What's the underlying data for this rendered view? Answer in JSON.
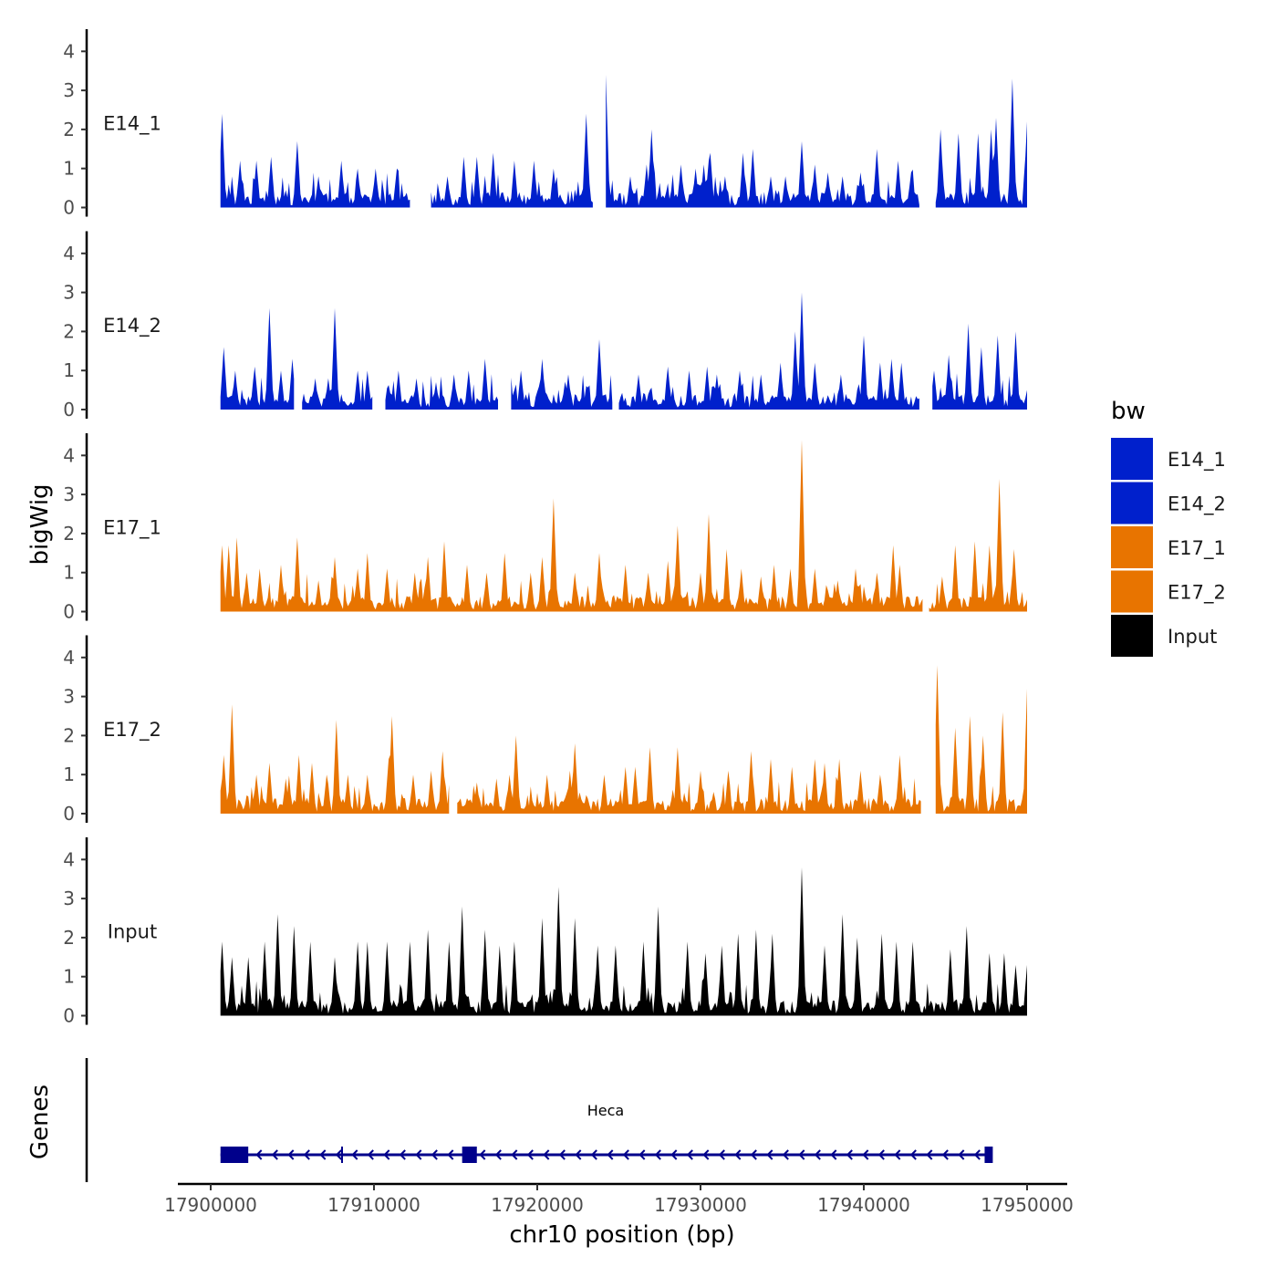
{
  "chart_data": {
    "type": "area",
    "xlabel": "chr10 position (bp)",
    "ylabel": "bigWig",
    "genes_label": "Genes",
    "xlim": [
      17896000,
      17951000
    ],
    "ylim": [
      0,
      4.6
    ],
    "x_ticks": [
      17900000,
      17910000,
      17920000,
      17930000,
      17940000,
      17950000
    ],
    "x_tick_labels": [
      "17900000",
      "17910000",
      "17920000",
      "17930000",
      "17940000",
      "17950000"
    ],
    "y_ticks": [
      0,
      1,
      2,
      3,
      4
    ],
    "y_tick_labels": [
      "0",
      "1",
      "2",
      "3",
      "4"
    ],
    "region": [
      17900600,
      17950000
    ],
    "legend": {
      "title": "bw",
      "position": "right",
      "entries": [
        {
          "name": "E14_1",
          "color": "#0020CC"
        },
        {
          "name": "E14_2",
          "color": "#0020CC"
        },
        {
          "name": "E17_1",
          "color": "#E87400"
        },
        {
          "name": "E17_2",
          "color": "#E87400"
        },
        {
          "name": "Input",
          "color": "#000000"
        }
      ]
    },
    "series": [
      {
        "name": "E14_1",
        "label": "E14_1",
        "color": "#0020CC",
        "gaps": [
          [
            17912200,
            17913500
          ],
          [
            17923400,
            17924200
          ],
          [
            17943400,
            17944400
          ]
        ],
        "peaks": [
          [
            17900700,
            2.4
          ],
          [
            17901800,
            1.2
          ],
          [
            17902800,
            1.2
          ],
          [
            17903700,
            1.3
          ],
          [
            17905300,
            1.7
          ],
          [
            17906600,
            0.8
          ],
          [
            17908000,
            1.2
          ],
          [
            17909000,
            1.0
          ],
          [
            17910100,
            1.0
          ],
          [
            17911400,
            1.0
          ],
          [
            17914500,
            0.8
          ],
          [
            17915500,
            1.3
          ],
          [
            17916300,
            1.3
          ],
          [
            17917300,
            1.4
          ],
          [
            17918600,
            1.2
          ],
          [
            17919800,
            1.2
          ],
          [
            17921000,
            1.0
          ],
          [
            17923000,
            2.4
          ],
          [
            17923800,
            2.4
          ],
          [
            17924200,
            3.4
          ],
          [
            17925700,
            0.8
          ],
          [
            17926700,
            1.1
          ],
          [
            17927000,
            2.0
          ],
          [
            17928800,
            1.1
          ],
          [
            17929700,
            1.0
          ],
          [
            17930200,
            1.1
          ],
          [
            17930500,
            1.2
          ],
          [
            17930600,
            1.4
          ],
          [
            17931500,
            0.8
          ],
          [
            17932600,
            1.4
          ],
          [
            17933200,
            1.5
          ],
          [
            17934300,
            0.8
          ],
          [
            17935200,
            0.8
          ],
          [
            17936200,
            1.7
          ],
          [
            17937000,
            1.1
          ],
          [
            17937800,
            0.9
          ],
          [
            17938700,
            0.8
          ],
          [
            17939800,
            0.9
          ],
          [
            17940800,
            1.5
          ],
          [
            17942100,
            1.2
          ],
          [
            17942900,
            0.9
          ],
          [
            17944700,
            2.0
          ],
          [
            17945800,
            1.9
          ],
          [
            17947000,
            1.9
          ],
          [
            17947800,
            2.0
          ],
          [
            17948100,
            2.3
          ],
          [
            17949100,
            3.3
          ],
          [
            17950000,
            2.2
          ]
        ]
      },
      {
        "name": "E14_2",
        "label": "E14_2",
        "color": "#0020CC",
        "gaps": [
          [
            17905100,
            17905600
          ],
          [
            17909900,
            17910700
          ],
          [
            17917600,
            17918400
          ],
          [
            17924600,
            17925000
          ],
          [
            17943400,
            17944200
          ]
        ],
        "peaks": [
          [
            17900800,
            1.6
          ],
          [
            17901500,
            1.0
          ],
          [
            17902700,
            1.1
          ],
          [
            17903600,
            2.6
          ],
          [
            17904300,
            1.0
          ],
          [
            17905000,
            1.3
          ],
          [
            17906400,
            0.8
          ],
          [
            17907200,
            0.8
          ],
          [
            17907600,
            2.6
          ],
          [
            17909000,
            1.0
          ],
          [
            17909600,
            1.0
          ],
          [
            17911500,
            1.0
          ],
          [
            17912600,
            0.8
          ],
          [
            17913800,
            0.7
          ],
          [
            17914900,
            0.9
          ],
          [
            17915800,
            1.0
          ],
          [
            17916800,
            1.3
          ],
          [
            17919000,
            1.0
          ],
          [
            17920300,
            1.3
          ],
          [
            17921900,
            0.9
          ],
          [
            17922800,
            0.5
          ],
          [
            17923800,
            1.8
          ],
          [
            17926200,
            0.9
          ],
          [
            17928000,
            1.1
          ],
          [
            17929300,
            1.0
          ],
          [
            17930400,
            1.1
          ],
          [
            17931000,
            0.9
          ],
          [
            17932400,
            1.0
          ],
          [
            17933700,
            0.9
          ],
          [
            17934900,
            1.2
          ],
          [
            17935800,
            2.0
          ],
          [
            17936200,
            3.0
          ],
          [
            17937000,
            1.2
          ],
          [
            17938600,
            0.9
          ],
          [
            17940000,
            1.9
          ],
          [
            17941000,
            1.2
          ],
          [
            17941700,
            1.3
          ],
          [
            17942300,
            1.2
          ],
          [
            17944300,
            1.0
          ],
          [
            17945200,
            1.4
          ],
          [
            17946400,
            2.2
          ],
          [
            17947200,
            1.6
          ],
          [
            17948200,
            1.9
          ],
          [
            17949300,
            2.0
          ],
          [
            17950000,
            0.5
          ]
        ]
      },
      {
        "name": "E17_1",
        "label": "E17_1",
        "color": "#E87400",
        "gaps": [
          [
            17943600,
            17944000
          ]
        ],
        "peaks": [
          [
            17900700,
            1.7
          ],
          [
            17901100,
            1.7
          ],
          [
            17901600,
            1.9
          ],
          [
            17902200,
            1.0
          ],
          [
            17903000,
            1.1
          ],
          [
            17904300,
            1.2
          ],
          [
            17905300,
            1.9
          ],
          [
            17906600,
            0.8
          ],
          [
            17907600,
            1.4
          ],
          [
            17909000,
            1.1
          ],
          [
            17909600,
            1.5
          ],
          [
            17910800,
            1.1
          ],
          [
            17912500,
            1.0
          ],
          [
            17913300,
            1.4
          ],
          [
            17914300,
            1.8
          ],
          [
            17915700,
            1.2
          ],
          [
            17916900,
            1.0
          ],
          [
            17918000,
            1.5
          ],
          [
            17919600,
            1.0
          ],
          [
            17920300,
            1.4
          ],
          [
            17921000,
            2.9
          ],
          [
            17922300,
            1.0
          ],
          [
            17923800,
            1.5
          ],
          [
            17925400,
            1.2
          ],
          [
            17926800,
            1.0
          ],
          [
            17928000,
            1.3
          ],
          [
            17928600,
            2.2
          ],
          [
            17930000,
            1.0
          ],
          [
            17930500,
            2.5
          ],
          [
            17931600,
            1.6
          ],
          [
            17932500,
            1.1
          ],
          [
            17933700,
            0.9
          ],
          [
            17934500,
            1.2
          ],
          [
            17935500,
            1.1
          ],
          [
            17936200,
            4.4
          ],
          [
            17937000,
            1.1
          ],
          [
            17938400,
            0.8
          ],
          [
            17939500,
            1.1
          ],
          [
            17940800,
            1.0
          ],
          [
            17941800,
            1.7
          ],
          [
            17942200,
            1.2
          ],
          [
            17944800,
            0.9
          ],
          [
            17945600,
            1.7
          ],
          [
            17946800,
            1.8
          ],
          [
            17947700,
            1.7
          ],
          [
            17948300,
            3.4
          ],
          [
            17949200,
            1.6
          ],
          [
            17950000,
            0.3
          ]
        ]
      },
      {
        "name": "E17_2",
        "label": "E17_2",
        "color": "#E87400",
        "gaps": [
          [
            17914600,
            17915100
          ],
          [
            17943500,
            17944400
          ]
        ],
        "peaks": [
          [
            17900800,
            1.5
          ],
          [
            17901300,
            2.8
          ],
          [
            17902800,
            1.0
          ],
          [
            17903600,
            1.3
          ],
          [
            17904600,
            0.9
          ],
          [
            17905400,
            1.5
          ],
          [
            17906200,
            1.3
          ],
          [
            17907100,
            1.0
          ],
          [
            17907700,
            2.4
          ],
          [
            17908400,
            1.0
          ],
          [
            17909600,
            1.0
          ],
          [
            17910900,
            1.4
          ],
          [
            17911100,
            2.5
          ],
          [
            17912400,
            1.0
          ],
          [
            17913500,
            1.1
          ],
          [
            17914200,
            1.6
          ],
          [
            17916300,
            0.8
          ],
          [
            17917500,
            0.9
          ],
          [
            17918300,
            1.0
          ],
          [
            17918700,
            2.0
          ],
          [
            17920600,
            1.0
          ],
          [
            17922000,
            1.1
          ],
          [
            17922300,
            1.8
          ],
          [
            17924100,
            1.0
          ],
          [
            17925400,
            1.2
          ],
          [
            17926000,
            1.2
          ],
          [
            17926900,
            1.7
          ],
          [
            17928600,
            1.7
          ],
          [
            17930000,
            1.1
          ],
          [
            17931700,
            1.1
          ],
          [
            17933100,
            1.6
          ],
          [
            17934300,
            1.4
          ],
          [
            17935600,
            1.2
          ],
          [
            17937000,
            1.4
          ],
          [
            17937600,
            1.3
          ],
          [
            17938500,
            1.4
          ],
          [
            17939800,
            1.1
          ],
          [
            17941000,
            1.0
          ],
          [
            17942200,
            1.5
          ],
          [
            17944500,
            3.8
          ],
          [
            17945600,
            2.2
          ],
          [
            17946500,
            2.5
          ],
          [
            17947300,
            2.0
          ],
          [
            17948500,
            2.6
          ],
          [
            17950000,
            3.2
          ]
        ]
      },
      {
        "name": "Input",
        "label": "Input",
        "color": "#000000",
        "gaps": [],
        "peaks": [
          [
            17900700,
            1.9
          ],
          [
            17901300,
            1.5
          ],
          [
            17902300,
            1.5
          ],
          [
            17903300,
            1.9
          ],
          [
            17904100,
            2.6
          ],
          [
            17905100,
            2.3
          ],
          [
            17906100,
            1.9
          ],
          [
            17907600,
            1.5
          ],
          [
            17909000,
            1.9
          ],
          [
            17909600,
            1.9
          ],
          [
            17910800,
            1.9
          ],
          [
            17912200,
            1.9
          ],
          [
            17913300,
            2.2
          ],
          [
            17914600,
            1.9
          ],
          [
            17915400,
            2.8
          ],
          [
            17916800,
            2.2
          ],
          [
            17917700,
            1.8
          ],
          [
            17918600,
            1.9
          ],
          [
            17920300,
            2.5
          ],
          [
            17921300,
            3.3
          ],
          [
            17922300,
            2.5
          ],
          [
            17923700,
            1.8
          ],
          [
            17924800,
            1.8
          ],
          [
            17926500,
            1.9
          ],
          [
            17927400,
            2.8
          ],
          [
            17929200,
            1.9
          ],
          [
            17930300,
            1.6
          ],
          [
            17931300,
            1.8
          ],
          [
            17932300,
            2.1
          ],
          [
            17933400,
            2.2
          ],
          [
            17934400,
            2.1
          ],
          [
            17936200,
            3.8
          ],
          [
            17937600,
            1.8
          ],
          [
            17938700,
            2.6
          ],
          [
            17939600,
            2.0
          ],
          [
            17941100,
            2.1
          ],
          [
            17942000,
            1.9
          ],
          [
            17943000,
            1.9
          ],
          [
            17945300,
            1.7
          ],
          [
            17946300,
            2.3
          ],
          [
            17947700,
            1.6
          ],
          [
            17948600,
            1.6
          ],
          [
            17949300,
            1.3
          ],
          [
            17950000,
            1.3
          ]
        ]
      }
    ],
    "gene": {
      "name": "Heca",
      "start": 17900600,
      "end": 17947800,
      "strand": "-",
      "exons": [
        [
          17900600,
          17902300
        ],
        [
          17915400,
          17916300
        ],
        [
          17947400,
          17947900
        ]
      ],
      "color": "#00008B"
    }
  }
}
